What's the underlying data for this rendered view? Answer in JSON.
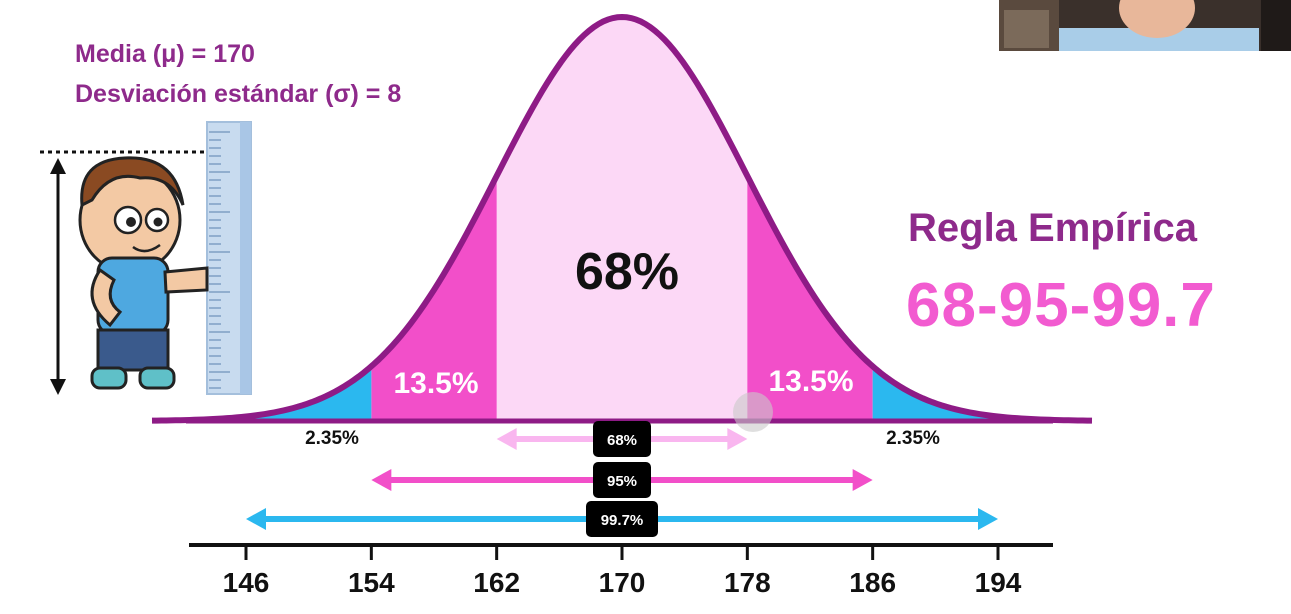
{
  "parameters": {
    "mean_label": "Media (μ) = 170",
    "sd_label": "Desviación estándar (σ) = 8"
  },
  "rule": {
    "title": "Regla Empírica",
    "numbers": "68-95-99.7"
  },
  "chart_data": {
    "type": "area",
    "mean": 170,
    "sd": 8,
    "x_ticks": [
      "146",
      "154",
      "162",
      "170",
      "178",
      "186",
      "194"
    ],
    "regions": [
      {
        "label": "68%",
        "from": 162,
        "to": 178,
        "color": "#fcd8f6"
      },
      {
        "label": "13.5%",
        "from": 154,
        "to": 162,
        "color": "#f24fc9"
      },
      {
        "label": "13.5%",
        "from": 178,
        "to": 186,
        "color": "#f24fc9"
      },
      {
        "label": "2.35%",
        "from": 146,
        "to": 154,
        "color": "#2bb8ef"
      },
      {
        "label": "2.35%",
        "from": 186,
        "to": 194,
        "color": "#2bb8ef"
      }
    ],
    "ranges": [
      {
        "label": "68%",
        "from": 162,
        "to": 178,
        "color": "#f9b6ef"
      },
      {
        "label": "95%",
        "from": 154,
        "to": 186,
        "color": "#f24fc9"
      },
      {
        "label": "99.7%",
        "from": 146,
        "to": 194,
        "color": "#2bb8ef"
      }
    ]
  }
}
